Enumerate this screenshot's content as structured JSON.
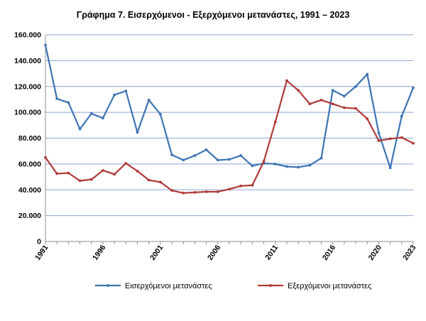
{
  "chart_data": {
    "type": "line",
    "title": "Γράφημα 7. Εισερχόμενοι - Εξερχόμενοι μετανάστες, 1991 – 2023",
    "xlabel": "",
    "ylabel": "",
    "x": [
      1991,
      1992,
      1993,
      1994,
      1995,
      1996,
      1997,
      1998,
      1999,
      2000,
      2001,
      2002,
      2003,
      2004,
      2005,
      2006,
      2007,
      2008,
      2009,
      2010,
      2011,
      2012,
      2013,
      2014,
      2015,
      2016,
      2017,
      2018,
      2019,
      2020,
      2021,
      2022,
      2023
    ],
    "x_tick_labels": [
      "1991",
      "1996",
      "2001",
      "2006",
      "2011",
      "2016",
      "2020",
      "2023"
    ],
    "x_tick_years": [
      1991,
      1996,
      2001,
      2006,
      2011,
      2016,
      2020,
      2023
    ],
    "ylim": [
      0,
      160000
    ],
    "y_ticks": [
      0,
      20000,
      40000,
      60000,
      80000,
      100000,
      120000,
      140000,
      160000
    ],
    "y_tick_labels": [
      "0",
      "20.000",
      "40.000",
      "60.000",
      "80.000",
      "100.000",
      "120.000",
      "140.000",
      "160.000"
    ],
    "grid": "horizontal",
    "legend_position": "bottom",
    "series": [
      {
        "name": "Εισερχόμενοι μετανάστες",
        "color": "#3d74b3",
        "values": [
          152000,
          110500,
          107500,
          87000,
          99000,
          95500,
          113500,
          116500,
          84500,
          109500,
          98500,
          67000,
          63000,
          66500,
          71000,
          63000,
          63500,
          66500,
          58500,
          60500,
          60000,
          58000,
          57500,
          59000,
          64500,
          117000,
          112500,
          120000,
          129500,
          84000,
          57000,
          97000,
          119000
        ]
      },
      {
        "name": "Εξερχόμενοι μετανάστες",
        "color": "#b03a38",
        "values": [
          65000,
          52500,
          53000,
          47000,
          48000,
          55000,
          52000,
          60500,
          54500,
          47500,
          46000,
          39500,
          37500,
          38000,
          38500,
          38500,
          40500,
          43000,
          43500,
          62000,
          92500,
          124500,
          117000,
          106500,
          109500,
          106500,
          103500,
          103000,
          95000,
          78000,
          79500,
          80500,
          76000
        ]
      }
    ]
  }
}
